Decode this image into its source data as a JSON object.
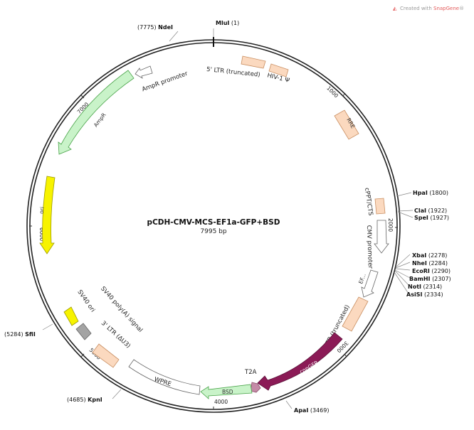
{
  "credit": {
    "text": "Created with ",
    "brand": "SnapGene",
    "mark": "®"
  },
  "plasmid": {
    "name": "pCDH-CMV-MCS-EF1a-GFP+BSD",
    "length": "7995 bp"
  },
  "ticks": [
    "1000",
    "2000",
    "3000",
    "4000",
    "5000",
    "6000",
    "7000"
  ],
  "sites": {
    "mlui": {
      "name": "MluI",
      "pos": "(1)"
    },
    "ndei": {
      "name": "NdeI",
      "pos": "(7775)"
    },
    "hpai": {
      "name": "HpaI",
      "pos": "(1800)"
    },
    "clai": {
      "name": "ClaI",
      "pos": "(1922)"
    },
    "spei": {
      "name": "SpeI",
      "pos": "(1927)"
    },
    "xbai": {
      "name": "XbaI",
      "pos": "(2278)"
    },
    "nhei": {
      "name": "NheI",
      "pos": "(2284)"
    },
    "ecori": {
      "name": "EcoRI",
      "pos": "(2290)"
    },
    "bamhi": {
      "name": "BamHI",
      "pos": "(2307)"
    },
    "noti": {
      "name": "NotI",
      "pos": "(2314)"
    },
    "asisi": {
      "name": "AsiSI",
      "pos": "(2334)"
    },
    "apai": {
      "name": "ApaI",
      "pos": "(3469)"
    },
    "kpni": {
      "name": "KpnI",
      "pos": "(4685)"
    },
    "sfii": {
      "name": "SfiI",
      "pos": "(5284)"
    }
  },
  "features": {
    "ltr5_top": "5' LTR (truncated)",
    "hiv_psi": "HIV-1 Ψ",
    "rre": "RRE",
    "cppt": "cPPT/CTS",
    "cmv": "CMV promoter",
    "ef": "EF...",
    "ltr5_low": "5' LTR (truncated)",
    "copgfp": "copGFP",
    "t2a": "T2A",
    "bsd": "BSD",
    "wpre": "WPRE",
    "ltr3": "3' LTR (ΔU3)",
    "sv40polya": "SV40 poly(A) signal",
    "sv40ori": "SV40 ori",
    "ori": "ori",
    "ampr": "AmpR",
    "ampr_promoter": "AmpR promoter"
  },
  "colors": {
    "backbone": "#222222",
    "ltr": "#fbd9bf",
    "ltr_stroke": "#c98f62",
    "ampr": "#c9f3c9",
    "ampr_stroke": "#4aa44a",
    "ori": "#f7f300",
    "ori_stroke": "#9c9a00",
    "sv40": "#a4a4a4",
    "copgfp": "#8b1a56",
    "t2a": "#c48aa6",
    "bsd": "#c9f3c9",
    "promoter": "#ffffff"
  }
}
